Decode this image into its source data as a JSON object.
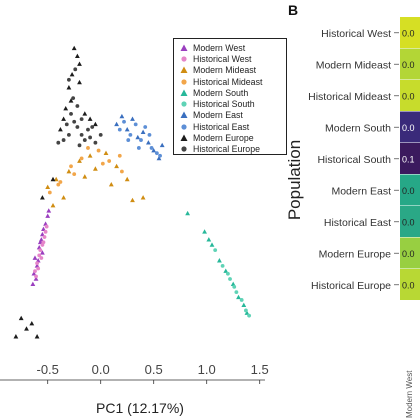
{
  "panel_letter": "B",
  "colors": {
    "modern_west": "#9a3fbf",
    "historical_west": "#e586c9",
    "modern_mideast": "#d08d12",
    "historical_mideast": "#f2a64a",
    "modern_south": "#27b89a",
    "historical_south": "#5fd3b6",
    "modern_east": "#3a6fbf",
    "historical_east": "#5d8fd6",
    "modern_europe": "#1c1c1c",
    "historical_europe": "#444444"
  },
  "chart_data": [
    {
      "type": "scatter",
      "xlabel": "PC1 (12.17%)",
      "ylabel": "",
      "xlim": [
        -0.95,
        1.55
      ],
      "ylim": [
        -0.62,
        0.62
      ],
      "x_ticks": [
        "-0.5",
        "0.0",
        "0.5",
        "1.0",
        "1.5"
      ],
      "x_tick_values": [
        -0.5,
        0.0,
        0.5,
        1.0,
        1.5
      ],
      "grid": false,
      "legend_position": "top-right",
      "series": [
        {
          "name": "Modern West",
          "marker": "triangle",
          "color_key": "modern_west",
          "points": [
            [
              -0.62,
              -0.25
            ],
            [
              -0.58,
              -0.21
            ],
            [
              -0.55,
              -0.16
            ],
            [
              -0.6,
              -0.28
            ],
            [
              -0.52,
              -0.12
            ],
            [
              -0.57,
              -0.19
            ],
            [
              -0.63,
              -0.31
            ],
            [
              -0.55,
              -0.23
            ],
            [
              -0.5,
              -0.09
            ],
            [
              -0.59,
              -0.26
            ],
            [
              -0.61,
              -0.33
            ],
            [
              -0.54,
              -0.14
            ],
            [
              -0.56,
              -0.18
            ],
            [
              -0.64,
              -0.35
            ],
            [
              -0.49,
              -0.07
            ]
          ]
        },
        {
          "name": "Historical West",
          "marker": "circle",
          "color_key": "historical_west",
          "points": [
            [
              -0.6,
              -0.27
            ],
            [
              -0.57,
              -0.22
            ],
            [
              -0.53,
              -0.17
            ],
            [
              -0.58,
              -0.24
            ],
            [
              -0.55,
              -0.2
            ],
            [
              -0.62,
              -0.3
            ],
            [
              -0.51,
              -0.13
            ],
            [
              -0.56,
              -0.25
            ],
            [
              -0.59,
              -0.29
            ],
            [
              -0.54,
              -0.19
            ],
            [
              -0.61,
              -0.32
            ],
            [
              -0.52,
              -0.15
            ]
          ]
        },
        {
          "name": "Modern Mideast",
          "marker": "triangle",
          "color_key": "modern_mideast",
          "points": [
            [
              -0.5,
              0.02
            ],
            [
              -0.42,
              0.05
            ],
            [
              -0.3,
              0.08
            ],
            [
              -0.2,
              0.12
            ],
            [
              -0.1,
              0.14
            ],
            [
              0.05,
              0.15
            ],
            [
              0.15,
              0.1
            ],
            [
              0.25,
              0.05
            ],
            [
              -0.35,
              -0.02
            ],
            [
              -0.15,
              0.06
            ],
            [
              0.1,
              0.03
            ],
            [
              0.3,
              -0.03
            ],
            [
              0.4,
              -0.02
            ],
            [
              -0.45,
              -0.05
            ],
            [
              -0.05,
              0.09
            ]
          ]
        },
        {
          "name": "Historical Mideast",
          "marker": "circle",
          "color_key": "historical_mideast",
          "points": [
            [
              -0.48,
              0.0
            ],
            [
              -0.4,
              0.03
            ],
            [
              -0.28,
              0.1
            ],
            [
              -0.18,
              0.13
            ],
            [
              -0.02,
              0.16
            ],
            [
              0.08,
              0.12
            ],
            [
              0.2,
              0.08
            ],
            [
              -0.38,
              0.04
            ],
            [
              -0.25,
              0.07
            ],
            [
              0.02,
              0.11
            ],
            [
              0.18,
              0.14
            ],
            [
              -0.12,
              0.17
            ]
          ]
        },
        {
          "name": "Modern South",
          "marker": "triangle",
          "color_key": "modern_south",
          "points": [
            [
              0.82,
              -0.08
            ],
            [
              0.98,
              -0.15
            ],
            [
              1.05,
              -0.2
            ],
            [
              1.12,
              -0.26
            ],
            [
              1.18,
              -0.3
            ],
            [
              1.25,
              -0.35
            ],
            [
              1.3,
              -0.4
            ],
            [
              1.35,
              -0.43
            ],
            [
              1.38,
              -0.46
            ],
            [
              1.02,
              -0.18
            ]
          ]
        },
        {
          "name": "Historical South",
          "marker": "circle",
          "color_key": "historical_south",
          "points": [
            [
              1.08,
              -0.22
            ],
            [
              1.15,
              -0.28
            ],
            [
              1.22,
              -0.33
            ],
            [
              1.28,
              -0.38
            ],
            [
              1.33,
              -0.41
            ],
            [
              1.37,
              -0.45
            ],
            [
              1.4,
              -0.47
            ],
            [
              1.2,
              -0.31
            ],
            [
              1.26,
              -0.36
            ]
          ]
        },
        {
          "name": "Modern East",
          "marker": "triangle",
          "color_key": "modern_east",
          "points": [
            [
              0.15,
              0.26
            ],
            [
              0.25,
              0.24
            ],
            [
              0.35,
              0.21
            ],
            [
              0.45,
              0.19
            ],
            [
              0.5,
              0.16
            ],
            [
              0.55,
              0.13
            ],
            [
              0.3,
              0.28
            ],
            [
              0.4,
              0.23
            ],
            [
              0.2,
              0.29
            ],
            [
              0.58,
              0.18
            ]
          ]
        },
        {
          "name": "Historical East",
          "marker": "circle",
          "color_key": "historical_east",
          "points": [
            [
              0.18,
              0.24
            ],
            [
              0.28,
              0.22
            ],
            [
              0.38,
              0.2
            ],
            [
              0.48,
              0.17
            ],
            [
              0.53,
              0.15
            ],
            [
              0.42,
              0.25
            ],
            [
              0.33,
              0.26
            ],
            [
              0.22,
              0.27
            ],
            [
              0.56,
              0.14
            ],
            [
              0.46,
              0.22
            ],
            [
              0.36,
              0.17
            ],
            [
              0.26,
              0.2
            ]
          ]
        },
        {
          "name": "Modern Europe",
          "marker": "triangle",
          "color_key": "modern_europe",
          "points": [
            [
              -0.25,
              0.55
            ],
            [
              -0.22,
              0.52
            ],
            [
              -0.2,
              0.49
            ],
            [
              -0.3,
              0.4
            ],
            [
              -0.28,
              0.35
            ],
            [
              -0.33,
              0.32
            ],
            [
              -0.35,
              0.28
            ],
            [
              -0.15,
              0.3
            ],
            [
              -0.1,
              0.28
            ],
            [
              -0.05,
              0.26
            ],
            [
              -0.38,
              0.24
            ],
            [
              -0.45,
              0.05
            ],
            [
              -0.55,
              -0.02
            ],
            [
              -0.65,
              -0.5
            ],
            [
              -0.75,
              -0.48
            ],
            [
              -0.8,
              -0.55
            ],
            [
              -0.6,
              -0.55
            ],
            [
              -0.7,
              -0.52
            ],
            [
              -0.2,
              0.42
            ],
            [
              -0.27,
              0.45
            ]
          ]
        },
        {
          "name": "Historical Europe",
          "marker": "circle",
          "color_key": "historical_europe",
          "points": [
            [
              -0.28,
              0.3
            ],
            [
              -0.25,
              0.27
            ],
            [
              -0.22,
              0.25
            ],
            [
              -0.18,
              0.22
            ],
            [
              -0.15,
              0.2
            ],
            [
              -0.1,
              0.21
            ],
            [
              -0.05,
              0.19
            ],
            [
              -0.3,
              0.22
            ],
            [
              -0.35,
              0.2
            ],
            [
              -0.2,
              0.18
            ],
            [
              -0.12,
              0.24
            ],
            [
              -0.26,
              0.36
            ],
            [
              -0.3,
              0.43
            ],
            [
              -0.24,
              0.47
            ],
            [
              -0.22,
              0.33
            ],
            [
              -0.4,
              0.19
            ],
            [
              -0.08,
              0.25
            ],
            [
              0.0,
              0.22
            ],
            [
              -0.32,
              0.26
            ],
            [
              -0.18,
              0.28
            ]
          ]
        }
      ]
    },
    {
      "type": "heatmap",
      "ylabel": "Population",
      "rows": [
        "Historical West",
        "Modern Mideast",
        "Historical Mideast",
        "Modern South",
        "Historical South",
        "Modern East",
        "Historical East",
        "Modern Europe",
        "Historical Europe"
      ],
      "cell_text": [
        "0.0",
        "0.0",
        "0.0",
        "0.0",
        "0.1",
        "0.0",
        "0.0",
        "0.0",
        "0.0"
      ],
      "cell_colors": [
        "#d6df24",
        "#b3d636",
        "#c7dc2c",
        "#3a2a7a",
        "#3b1a5e",
        "#26a887",
        "#2aa886",
        "#98cf41",
        "#b8d834"
      ],
      "bottom_label": "Modern West"
    }
  ]
}
